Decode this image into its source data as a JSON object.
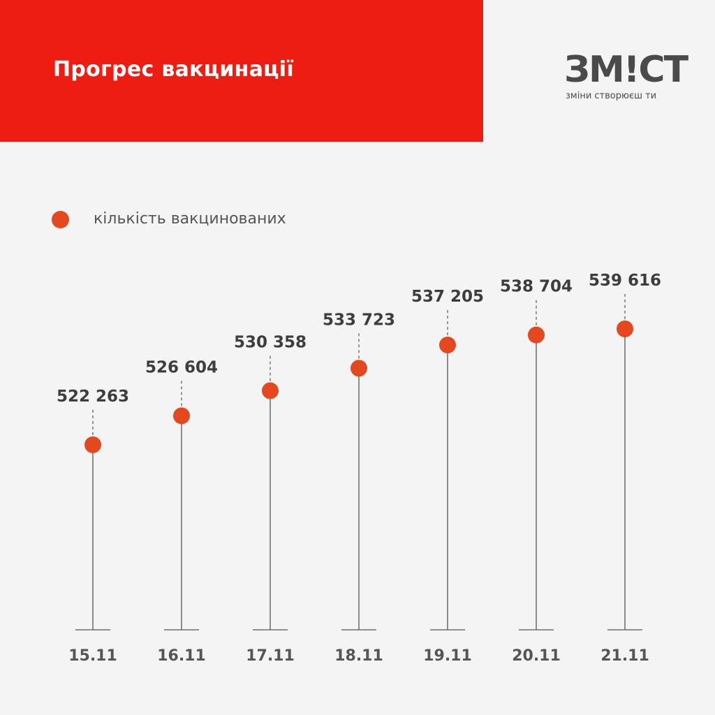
{
  "header": {
    "title": "Прогрес вакцинації",
    "band_color": "#ee1d12"
  },
  "logo": {
    "wordmark": "ЗМ!СТ",
    "tagline": "зміни створюєш ти",
    "wordmark_color": "#4a4a4a",
    "accent_color": "#1aa37a"
  },
  "legend": {
    "label": "кількість вакцинованих",
    "color": "#e4481f"
  },
  "chart_data": {
    "type": "scatter",
    "title": "Прогрес вакцинації",
    "categories": [
      "15.11",
      "16.11",
      "17.11",
      "18.11",
      "19.11",
      "20.11",
      "21.11"
    ],
    "series": [
      {
        "name": "кількість вакцинованих",
        "values": [
          522263,
          526604,
          530358,
          533723,
          537205,
          538704,
          539616
        ],
        "labels": [
          "522 263",
          "526 604",
          "530 358",
          "533 723",
          "537 205",
          "538 704",
          "539 616"
        ],
        "color": "#e4481f"
      }
    ],
    "marker_style": "dot-on-stem",
    "grid": false,
    "legend_position": "top-left"
  }
}
